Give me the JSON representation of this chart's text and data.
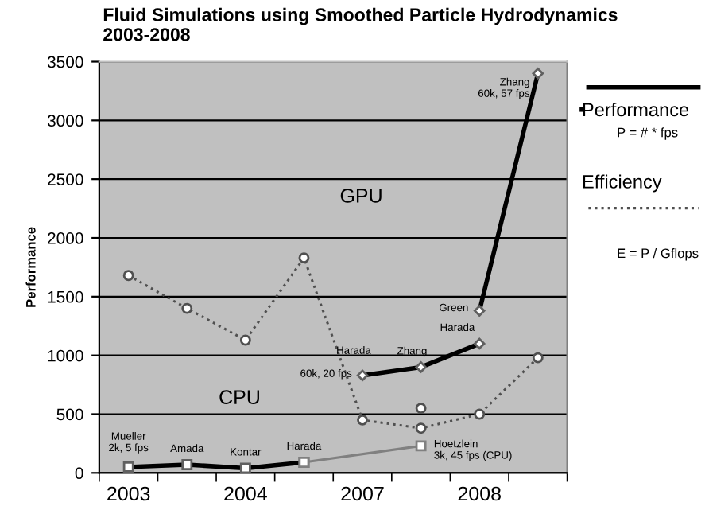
{
  "chart_data": {
    "type": "line",
    "title": "Fluid Simulations using Smoothed Particle Hydrodynamics\n2003-2008",
    "ylabel": "Performance",
    "categories": [
      "2003",
      null,
      "2004",
      null,
      "2007",
      null,
      "2008",
      null
    ],
    "ylim": [
      0,
      3500
    ],
    "yticks": [
      0,
      500,
      1000,
      1500,
      2000,
      2500,
      3000,
      3500
    ],
    "grid": "y",
    "legend": "right",
    "series": [
      {
        "color": "#000000",
        "marker": "square",
        "line_style": "solid",
        "values": [
          50,
          70,
          40,
          90,
          null,
          null,
          null,
          null
        ]
      },
      {
        "color": "#808080",
        "marker": "square",
        "line_style": "solid",
        "values": [
          null,
          null,
          null,
          90,
          null,
          230,
          null,
          null
        ]
      },
      {
        "name": "Performance",
        "color": "#000000",
        "marker": "diamond",
        "line_style": "solid",
        "values": [
          null,
          null,
          null,
          null,
          830,
          900,
          1100,
          null
        ]
      },
      {
        "color": "#000000",
        "marker": "diamond",
        "line_style": "solid",
        "values": [
          null,
          null,
          null,
          null,
          null,
          null,
          1380,
          3400
        ]
      },
      {
        "name": "Efficiency",
        "color": "#505050",
        "marker": "circle",
        "line_style": "dotted",
        "values": [
          1680,
          1400,
          1130,
          1830,
          450,
          380,
          500,
          980
        ]
      },
      {
        "type": "scatter",
        "color": "#505050",
        "marker": "circle",
        "values": [
          null,
          null,
          null,
          null,
          null,
          550,
          null,
          null
        ]
      }
    ],
    "annotations": [
      {
        "text": "Mueller\n2k, 5 fps",
        "y": 50
      },
      {
        "text": "Amada",
        "y": 70
      },
      {
        "text": "Kontar",
        "y": 40
      },
      {
        "text": "Harada",
        "y": 90
      },
      {
        "text": "Harada",
        "y": 830
      },
      {
        "text": "Zhang",
        "y": 900
      },
      {
        "text": "Harada",
        "y": 1100
      },
      "60k, 20 fps",
      "Green",
      "Hoetzlein\n3k, 45 fps (CPU)",
      "Zhang\n60k, 57 fps",
      "GPU",
      "CPU",
      "P = # * fps",
      "E = P / Gflops"
    ]
  }
}
